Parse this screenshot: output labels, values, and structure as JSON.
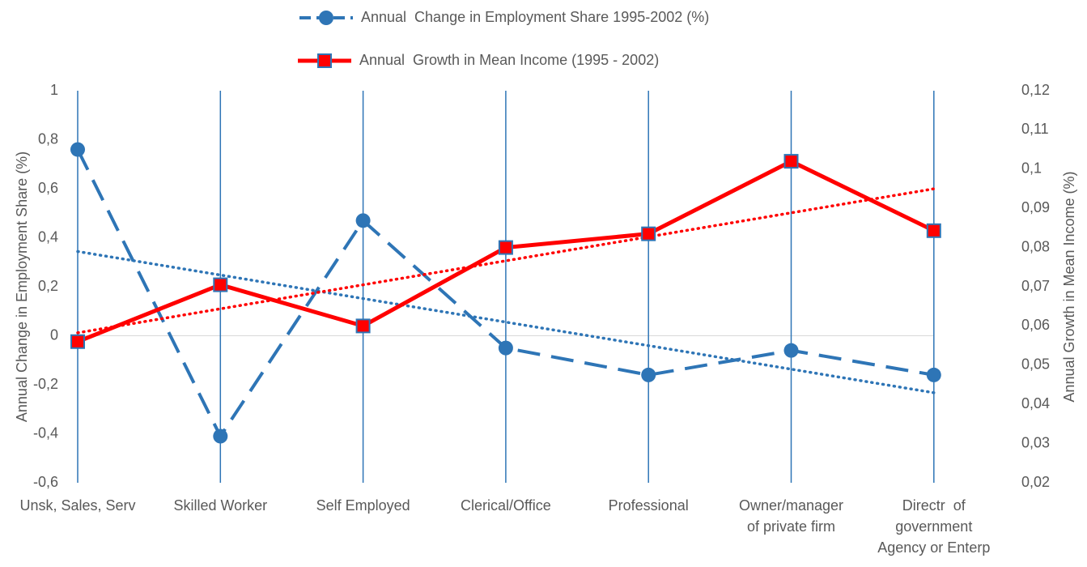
{
  "chart_data": {
    "type": "line",
    "categories": [
      "Unsk, Sales, Serv",
      "Skilled Worker",
      "Self Employed",
      "Clerical/Office",
      "Professional",
      "Owner/manager\nof private firm",
      "Directr  of\ngovernment\nAgency or Enterp"
    ],
    "series": [
      {
        "name": "Annual  Change in Employment Share 1995-2002 (%)",
        "color": "#2e75b6",
        "axis": "y",
        "dash": "dashed",
        "marker": "circle",
        "trendline": true,
        "values": [
          0.76,
          -0.41,
          0.47,
          -0.05,
          -0.16,
          -0.06,
          -0.16
        ]
      },
      {
        "name": "Annual  Growth in Mean Income (1995 - 2002)",
        "color": "#ff0000",
        "axis": "y2",
        "dash": "solid",
        "marker": "square",
        "trendline": true,
        "values": [
          0.056,
          0.0705,
          0.06,
          0.08,
          0.0835,
          0.102,
          0.0843
        ]
      }
    ],
    "ylabel": "Annual Change in Employment Share (%)",
    "y2label": "Annual Growth in Mean Income (%)",
    "ylim": [
      -0.6,
      1
    ],
    "yticks": [
      {
        "value": -0.6,
        "label": "-0,6"
      },
      {
        "value": -0.4,
        "label": "-0,4"
      },
      {
        "value": -0.2,
        "label": "-0,2"
      },
      0,
      {
        "value": 0.2,
        "label": "0,2"
      },
      {
        "value": 0.4,
        "label": "0,4"
      },
      {
        "value": 0.6,
        "label": "0,6"
      },
      {
        "value": 0.8,
        "label": "0,8"
      },
      1
    ],
    "y2lim": [
      0.02,
      0.12
    ],
    "y2ticks": [
      {
        "value": 0.02,
        "label": "0,02"
      },
      {
        "value": 0.03,
        "label": "0,03"
      },
      {
        "value": 0.04,
        "label": "0,04"
      },
      {
        "value": 0.05,
        "label": "0,05"
      },
      {
        "value": 0.06,
        "label": "0,06"
      },
      {
        "value": 0.07,
        "label": "0,07"
      },
      {
        "value": 0.08,
        "label": "0,08"
      },
      {
        "value": 0.09,
        "label": "0,09"
      },
      {
        "value": 0.1,
        "label": "0,1"
      },
      {
        "value": 0.11,
        "label": "0,11"
      },
      {
        "value": 0.12,
        "label": "0,12"
      }
    ],
    "legend": "top",
    "grid": "vertical"
  }
}
